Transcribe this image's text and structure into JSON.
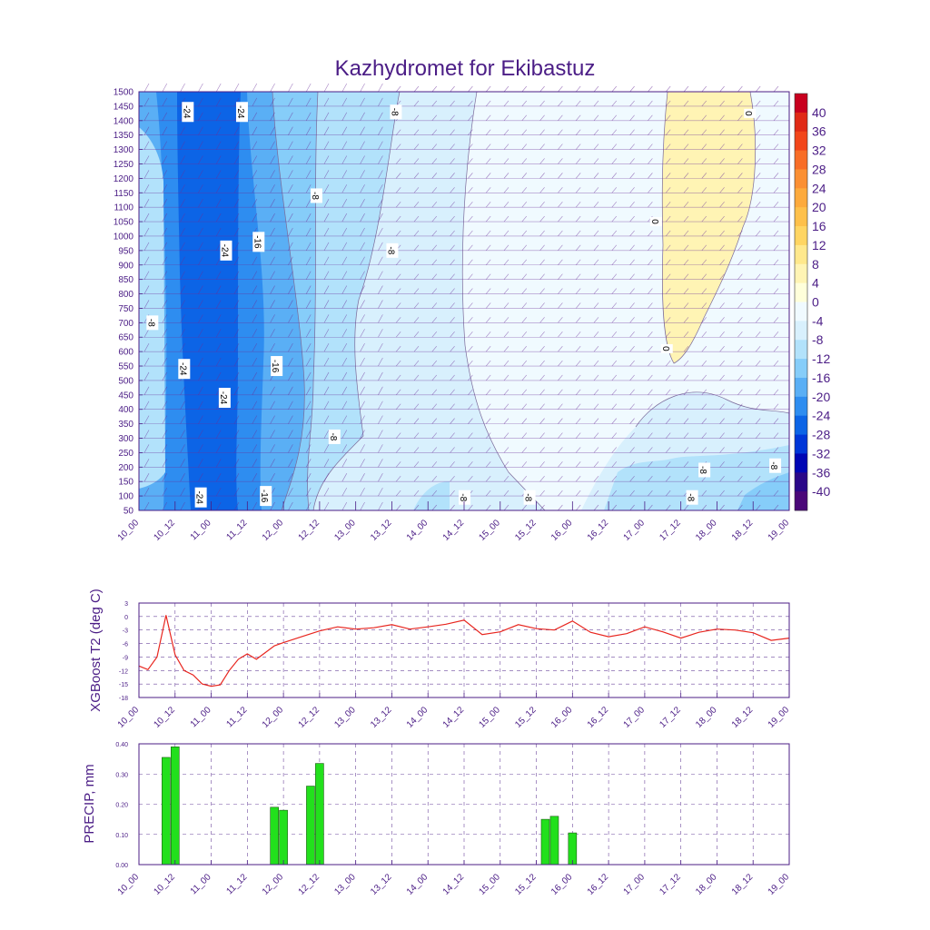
{
  "title": "Kazhydromet for Ekibastuz",
  "colors": {
    "frame": "#4b1d86",
    "label": "#4b1d86",
    "line": "#e8261f",
    "bar": "#22e01c",
    "bar_edge": "#1a5a10",
    "grid": "#4b1d86",
    "barb": "#6a2f9a"
  },
  "chart_data": [
    {
      "type": "heatmap",
      "name": "cross-section",
      "x_ticks": [
        "10_00",
        "10_12",
        "11_00",
        "11_12",
        "12_00",
        "12_12",
        "13_00",
        "13_12",
        "14_00",
        "14_12",
        "15_00",
        "15_12",
        "16_00",
        "16_12",
        "17_00",
        "17_12",
        "18_00",
        "18_12",
        "19_00"
      ],
      "y_ticks": [
        1500,
        1450,
        1400,
        1350,
        1300,
        1250,
        1200,
        1150,
        1100,
        1050,
        1000,
        950,
        900,
        850,
        800,
        750,
        700,
        650,
        600,
        550,
        500,
        450,
        400,
        350,
        300,
        250,
        200,
        150,
        100,
        50
      ],
      "ylim": [
        50,
        1500
      ],
      "colorbar": {
        "labels": [
          "40",
          "36",
          "32",
          "28",
          "24",
          "20",
          "16",
          "12",
          "8",
          "4",
          "0",
          "-4",
          "-8",
          "-12",
          "-16",
          "-20",
          "-24",
          "-28",
          "-32",
          "-36",
          "-40"
        ],
        "colors": [
          "#c8001e",
          "#e02a16",
          "#f2461a",
          "#f86d26",
          "#fb8f32",
          "#fdaa3c",
          "#fec04a",
          "#ffd562",
          "#ffe88c",
          "#fff4b4",
          "#ffffda",
          "#f0faff",
          "#d8f0fd",
          "#b2e2fb",
          "#86cdf9",
          "#5aaff5",
          "#2e8df0",
          "#0c64e6",
          "#0036d8",
          "#0006b4",
          "#2a0888",
          "#4a0878"
        ]
      },
      "contour_labels": [
        {
          "text": "-24",
          "x": 0.67,
          "y": 1430
        },
        {
          "text": "-24",
          "x": 1.42,
          "y": 1430
        },
        {
          "text": "-8",
          "x": 3.55,
          "y": 1430
        },
        {
          "text": "0",
          "x": 8.45,
          "y": 1425
        },
        {
          "text": "-8",
          "x": 2.45,
          "y": 1140
        },
        {
          "text": "0",
          "x": 7.15,
          "y": 1050
        },
        {
          "text": "-16",
          "x": 1.65,
          "y": 980
        },
        {
          "text": "-24",
          "x": 1.2,
          "y": 950
        },
        {
          "text": "-8",
          "x": 3.5,
          "y": 950
        },
        {
          "text": "-8",
          "x": 0.18,
          "y": 700
        },
        {
          "text": "0",
          "x": 7.3,
          "y": 610
        },
        {
          "text": "-24",
          "x": 0.62,
          "y": 540
        },
        {
          "text": "-16",
          "x": 1.9,
          "y": 550
        },
        {
          "text": "-24",
          "x": 1.18,
          "y": 440
        },
        {
          "text": "-8",
          "x": 2.7,
          "y": 305
        },
        {
          "text": "-8",
          "x": 7.82,
          "y": 190
        },
        {
          "text": "-8",
          "x": 8.8,
          "y": 205
        },
        {
          "text": "-24",
          "x": 0.85,
          "y": 95
        },
        {
          "text": "-16",
          "x": 1.75,
          "y": 100
        },
        {
          "text": "-8",
          "x": 4.5,
          "y": 95
        },
        {
          "text": "-8",
          "x": 5.4,
          "y": 95
        },
        {
          "text": "-8",
          "x": 7.65,
          "y": 95
        }
      ]
    },
    {
      "type": "line",
      "name": "t2",
      "ylabel": "XGBoost T2 (deg C)",
      "ylim": [
        -18,
        3
      ],
      "y_ticks": [
        "3",
        "0",
        "-3",
        "-6",
        "-9",
        "-12",
        "-15",
        "-18"
      ],
      "x_ticks": [
        "10_00",
        "10_12",
        "11_00",
        "11_12",
        "12_00",
        "12_12",
        "13_00",
        "13_12",
        "14_00",
        "14_12",
        "15_00",
        "15_12",
        "16_00",
        "16_12",
        "17_00",
        "17_12",
        "18_00",
        "18_12",
        "19_00"
      ],
      "x": [
        0,
        0.125,
        0.25,
        0.375,
        0.5,
        0.625,
        0.75,
        0.875,
        1,
        1.125,
        1.25,
        1.375,
        1.5,
        1.625,
        1.75,
        1.875,
        2,
        2.25,
        2.5,
        2.75,
        3,
        3.25,
        3.5,
        3.75,
        4,
        4.25,
        4.5,
        4.75,
        5,
        5.25,
        5.5,
        5.75,
        6,
        6.25,
        6.5,
        6.75,
        7,
        7.25,
        7.5,
        7.75,
        8,
        8.25,
        8.5,
        8.75,
        9
      ],
      "values": [
        -11,
        -11.8,
        -9,
        0.3,
        -8.5,
        -12,
        -13,
        -15,
        -15.5,
        -15.2,
        -12,
        -9.5,
        -8.3,
        -9.5,
        -8,
        -6.5,
        -5.8,
        -4.5,
        -3.2,
        -2.3,
        -2.8,
        -2.5,
        -1.8,
        -2.8,
        -2.3,
        -1.7,
        -0.8,
        -4,
        -3.4,
        -1.8,
        -2.7,
        -3,
        -1,
        -3.5,
        -4.5,
        -3.8,
        -2.3,
        -3.4,
        -4.8,
        -3.5,
        -2.8,
        -3,
        -3.6,
        -5.3,
        -4.8
      ]
    },
    {
      "type": "bar",
      "name": "precip",
      "ylabel": "PRECIP, mm",
      "ylim": [
        0,
        0.4
      ],
      "y_ticks": [
        "0.40",
        "0.30",
        "0.20",
        "0.10",
        "0.00"
      ],
      "x_ticks": [
        "10_00",
        "10_12",
        "11_00",
        "11_12",
        "12_00",
        "12_12",
        "13_00",
        "13_12",
        "14_00",
        "14_12",
        "15_00",
        "15_12",
        "16_00",
        "16_12",
        "17_00",
        "17_12",
        "18_00",
        "18_12",
        "19_00"
      ],
      "x": [
        0.375,
        0.5,
        1.875,
        2,
        2.375,
        2.5,
        5.625,
        5.75,
        6
      ],
      "values": [
        0.355,
        0.39,
        0.19,
        0.18,
        0.26,
        0.335,
        0.15,
        0.16,
        0.105
      ]
    }
  ]
}
